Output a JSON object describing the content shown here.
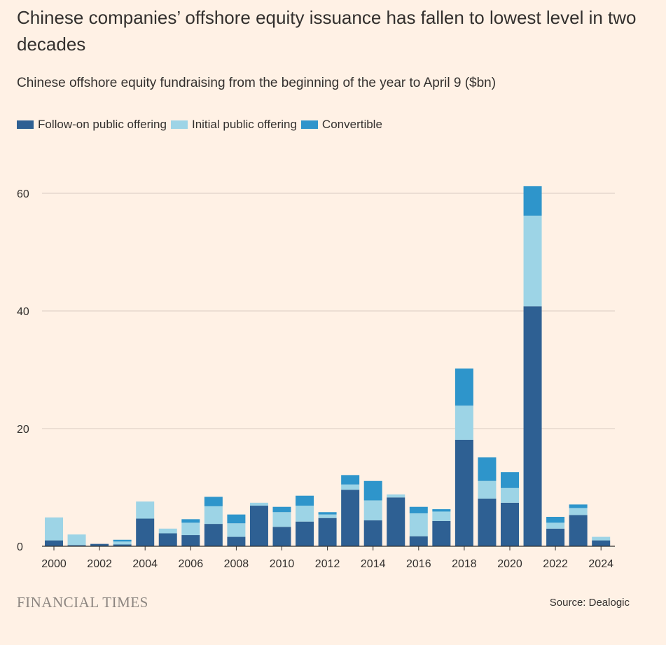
{
  "header": {
    "title": "Chinese companies’ offshore equity issuance has fallen to lowest level in two decades",
    "subtitle": "Chinese offshore equity fundraising from the beginning of the year to April 9 ($bn)"
  },
  "footer": {
    "logo": "FINANCIAL TIMES",
    "source": "Source: Dealogic"
  },
  "colors": {
    "background": "#fff1e5",
    "follow_on": "#2e6093",
    "ipo": "#9dd4e6",
    "convertible": "#2e95cb",
    "grid": "#d9ccc1",
    "axis": "#33302e"
  },
  "chart_data": {
    "type": "bar",
    "stacked": true,
    "title": "Chinese companies’ offshore equity issuance has fallen to lowest level in two decades",
    "subtitle": "Chinese offshore equity fundraising from the beginning of the year to April 9 ($bn)",
    "xlabel": "",
    "ylabel": "$bn",
    "ylim": [
      0,
      65
    ],
    "yticks": [
      0,
      20,
      40,
      60
    ],
    "grid": true,
    "legend_position": "top-left",
    "categories": [
      "2000",
      "2001",
      "2002",
      "2003",
      "2004",
      "2005",
      "2006",
      "2007",
      "2008",
      "2009",
      "2010",
      "2011",
      "2012",
      "2013",
      "2014",
      "2015",
      "2016",
      "2017",
      "2018",
      "2019",
      "2020",
      "2021",
      "2022",
      "2023",
      "2024"
    ],
    "xtick_labels": [
      "2000",
      "2002",
      "2004",
      "2006",
      "2008",
      "2010",
      "2012",
      "2014",
      "2016",
      "2018",
      "2020",
      "2022",
      "2024"
    ],
    "series": [
      {
        "name": "Follow-on public offering",
        "key": "follow_on",
        "values": [
          1.0,
          0.2,
          0.4,
          0.3,
          4.7,
          2.2,
          1.9,
          3.8,
          1.6,
          6.9,
          3.3,
          4.2,
          4.8,
          9.6,
          4.4,
          8.3,
          1.7,
          4.3,
          18.1,
          8.1,
          7.4,
          40.8,
          3.0,
          5.3,
          1.0
        ]
      },
      {
        "name": "Initial public offering",
        "key": "ipo",
        "values": [
          3.9,
          1.8,
          0.0,
          0.5,
          2.9,
          0.8,
          2.1,
          3.0,
          2.3,
          0.5,
          2.5,
          2.7,
          0.6,
          0.9,
          3.4,
          0.5,
          3.9,
          1.6,
          5.8,
          3.0,
          2.5,
          15.4,
          1.0,
          1.2,
          0.6
        ]
      },
      {
        "name": "Convertible",
        "key": "convertible",
        "values": [
          0.0,
          0.0,
          0.0,
          0.3,
          0.0,
          0.0,
          0.6,
          1.6,
          1.5,
          0.0,
          0.9,
          1.7,
          0.4,
          1.6,
          3.3,
          0.0,
          1.1,
          0.4,
          6.3,
          4.0,
          2.7,
          5.0,
          1.0,
          0.6,
          0.0
        ]
      }
    ]
  }
}
